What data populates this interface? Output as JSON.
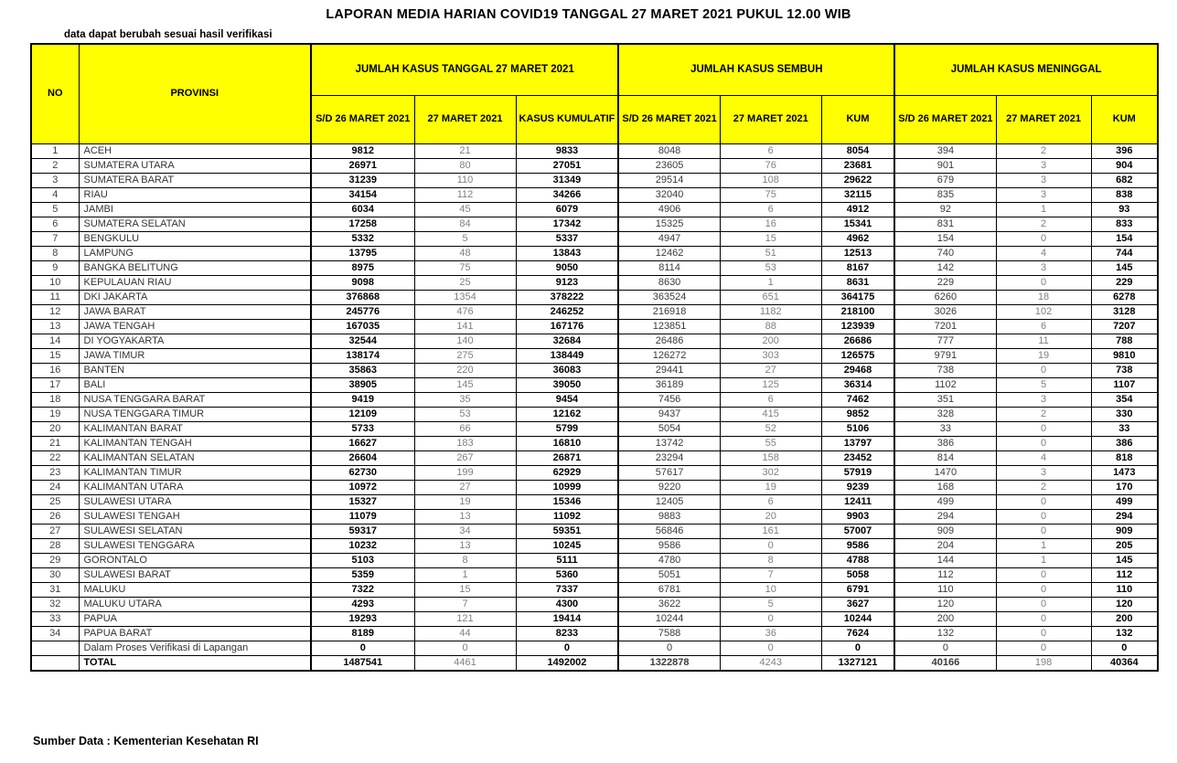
{
  "title": "LAPORAN MEDIA HARIAN COVID19 TANGGAL 27 MARET 2021 PUKUL 12.00 WIB",
  "note": "data dapat berubah sesuai hasil verifikasi",
  "source": "Sumber Data : Kementerian Kesehatan RI",
  "colors": {
    "header_bg": "#FFFF00",
    "grid": "#000000",
    "muted_value": "#7f7f7f"
  },
  "table": {
    "col_no": "NO",
    "col_provinsi": "PROVINSI",
    "groups": [
      "JUMLAH KASUS TANGGAL 27 MARET 2021",
      "JUMLAH KASUS SEMBUH",
      "JUMLAH KASUS MENINGGAL"
    ],
    "subheaders": [
      "S/D 26 MARET 2021",
      "27 MARET 2021",
      "KASUS KUMULATIF",
      "S/D 26 MARET 2021",
      "27 MARET 2021",
      "KUM",
      "S/D 26 MARET 2021",
      "27 MARET 2021",
      "KUM"
    ],
    "rows": [
      [
        "1",
        "ACEH",
        "9812",
        "21",
        "9833",
        "8048",
        "6",
        "8054",
        "394",
        "2",
        "396"
      ],
      [
        "2",
        "SUMATERA UTARA",
        "26971",
        "80",
        "27051",
        "23605",
        "76",
        "23681",
        "901",
        "3",
        "904"
      ],
      [
        "3",
        "SUMATERA BARAT",
        "31239",
        "110",
        "31349",
        "29514",
        "108",
        "29622",
        "679",
        "3",
        "682"
      ],
      [
        "4",
        "RIAU",
        "34154",
        "112",
        "34266",
        "32040",
        "75",
        "32115",
        "835",
        "3",
        "838"
      ],
      [
        "5",
        "JAMBI",
        "6034",
        "45",
        "6079",
        "4906",
        "6",
        "4912",
        "92",
        "1",
        "93"
      ],
      [
        "6",
        "SUMATERA SELATAN",
        "17258",
        "84",
        "17342",
        "15325",
        "16",
        "15341",
        "831",
        "2",
        "833"
      ],
      [
        "7",
        "BENGKULU",
        "5332",
        "5",
        "5337",
        "4947",
        "15",
        "4962",
        "154",
        "0",
        "154"
      ],
      [
        "8",
        "LAMPUNG",
        "13795",
        "48",
        "13843",
        "12462",
        "51",
        "12513",
        "740",
        "4",
        "744"
      ],
      [
        "9",
        "BANGKA BELITUNG",
        "8975",
        "75",
        "9050",
        "8114",
        "53",
        "8167",
        "142",
        "3",
        "145"
      ],
      [
        "10",
        "KEPULAUAN RIAU",
        "9098",
        "25",
        "9123",
        "8630",
        "1",
        "8631",
        "229",
        "0",
        "229"
      ],
      [
        "11",
        "DKI JAKARTA",
        "376868",
        "1354",
        "378222",
        "363524",
        "651",
        "364175",
        "6260",
        "18",
        "6278"
      ],
      [
        "12",
        "JAWA BARAT",
        "245776",
        "476",
        "246252",
        "216918",
        "1182",
        "218100",
        "3026",
        "102",
        "3128"
      ],
      [
        "13",
        "JAWA TENGAH",
        "167035",
        "141",
        "167176",
        "123851",
        "88",
        "123939",
        "7201",
        "6",
        "7207"
      ],
      [
        "14",
        "DI YOGYAKARTA",
        "32544",
        "140",
        "32684",
        "26486",
        "200",
        "26686",
        "777",
        "11",
        "788"
      ],
      [
        "15",
        "JAWA TIMUR",
        "138174",
        "275",
        "138449",
        "126272",
        "303",
        "126575",
        "9791",
        "19",
        "9810"
      ],
      [
        "16",
        "BANTEN",
        "35863",
        "220",
        "36083",
        "29441",
        "27",
        "29468",
        "738",
        "0",
        "738"
      ],
      [
        "17",
        "BALI",
        "38905",
        "145",
        "39050",
        "36189",
        "125",
        "36314",
        "1102",
        "5",
        "1107"
      ],
      [
        "18",
        "NUSA TENGGARA BARAT",
        "9419",
        "35",
        "9454",
        "7456",
        "6",
        "7462",
        "351",
        "3",
        "354"
      ],
      [
        "19",
        "NUSA TENGGARA TIMUR",
        "12109",
        "53",
        "12162",
        "9437",
        "415",
        "9852",
        "328",
        "2",
        "330"
      ],
      [
        "20",
        "KALIMANTAN BARAT",
        "5733",
        "66",
        "5799",
        "5054",
        "52",
        "5106",
        "33",
        "0",
        "33"
      ],
      [
        "21",
        "KALIMANTAN TENGAH",
        "16627",
        "183",
        "16810",
        "13742",
        "55",
        "13797",
        "386",
        "0",
        "386"
      ],
      [
        "22",
        "KALIMANTAN SELATAN",
        "26604",
        "267",
        "26871",
        "23294",
        "158",
        "23452",
        "814",
        "4",
        "818"
      ],
      [
        "23",
        "KALIMANTAN TIMUR",
        "62730",
        "199",
        "62929",
        "57617",
        "302",
        "57919",
        "1470",
        "3",
        "1473"
      ],
      [
        "24",
        "KALIMANTAN UTARA",
        "10972",
        "27",
        "10999",
        "9220",
        "19",
        "9239",
        "168",
        "2",
        "170"
      ],
      [
        "25",
        "SULAWESI UTARA",
        "15327",
        "19",
        "15346",
        "12405",
        "6",
        "12411",
        "499",
        "0",
        "499"
      ],
      [
        "26",
        "SULAWESI TENGAH",
        "11079",
        "13",
        "11092",
        "9883",
        "20",
        "9903",
        "294",
        "0",
        "294"
      ],
      [
        "27",
        "SULAWESI SELATAN",
        "59317",
        "34",
        "59351",
        "56846",
        "161",
        "57007",
        "909",
        "0",
        "909"
      ],
      [
        "28",
        "SULAWESI TENGGARA",
        "10232",
        "13",
        "10245",
        "9586",
        "0",
        "9586",
        "204",
        "1",
        "205"
      ],
      [
        "29",
        "GORONTALO",
        "5103",
        "8",
        "5111",
        "4780",
        "8",
        "4788",
        "144",
        "1",
        "145"
      ],
      [
        "30",
        "SULAWESI BARAT",
        "5359",
        "1",
        "5360",
        "5051",
        "7",
        "5058",
        "112",
        "0",
        "112"
      ],
      [
        "31",
        "MALUKU",
        "7322",
        "15",
        "7337",
        "6781",
        "10",
        "6791",
        "110",
        "0",
        "110"
      ],
      [
        "32",
        "MALUKU UTARA",
        "4293",
        "7",
        "4300",
        "3622",
        "5",
        "3627",
        "120",
        "0",
        "120"
      ],
      [
        "33",
        "PAPUA",
        "19293",
        "121",
        "19414",
        "10244",
        "0",
        "10244",
        "200",
        "0",
        "200"
      ],
      [
        "34",
        "PAPUA BARAT",
        "8189",
        "44",
        "8233",
        "7588",
        "36",
        "7624",
        "132",
        "0",
        "132"
      ],
      [
        "",
        "Dalam Proses Verifikasi di Lapangan",
        "0",
        "0",
        "0",
        "0",
        "0",
        "0",
        "0",
        "0",
        "0"
      ]
    ],
    "total_row": [
      "",
      "TOTAL",
      "1487541",
      "4461",
      "1492002",
      "1322878",
      "4243",
      "1327121",
      "40166",
      "198",
      "40364"
    ]
  }
}
